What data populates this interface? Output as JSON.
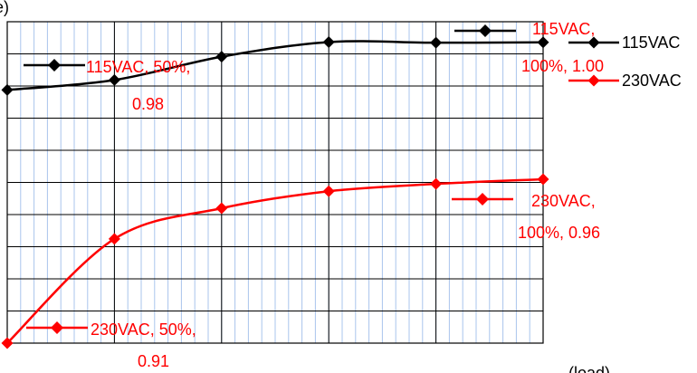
{
  "chart_data": {
    "type": "line",
    "title": "",
    "top_left_text": "e)",
    "bottom_right_text": "(load)",
    "xlabel": "",
    "ylabel": "",
    "x": [
      10,
      20,
      30,
      40,
      50,
      60
    ],
    "xlim": [
      10,
      60
    ],
    "ylim": [
      0.897,
      0.9935
    ],
    "grid": true,
    "legend": "top-right",
    "series": [
      {
        "name": "115VAC",
        "color": "#000000",
        "values": [
          0.973,
          0.976,
          0.983,
          0.9874,
          0.9872,
          0.9873
        ]
      },
      {
        "name": "230VAC",
        "color": "#ff0000",
        "values": [
          0.897,
          0.9283,
          0.9375,
          0.9426,
          0.9448,
          0.9462
        ]
      }
    ],
    "annotations": [
      {
        "line1": "115VAC, 50%,",
        "line2": "0.98",
        "color": "#ff0000",
        "marker": "#000000"
      },
      {
        "line1": "115VAC,",
        "line2": "100%, 1.00",
        "color": "#ff0000",
        "marker": "#000000"
      },
      {
        "line1": "230VAC,",
        "line2": "100%, 0.96",
        "color": "#ff0000",
        "marker": "#ff0000"
      },
      {
        "line1": "230VAC, 50%,",
        "line2": "0.91",
        "color": "#ff0000",
        "marker": "#ff0000"
      }
    ]
  }
}
